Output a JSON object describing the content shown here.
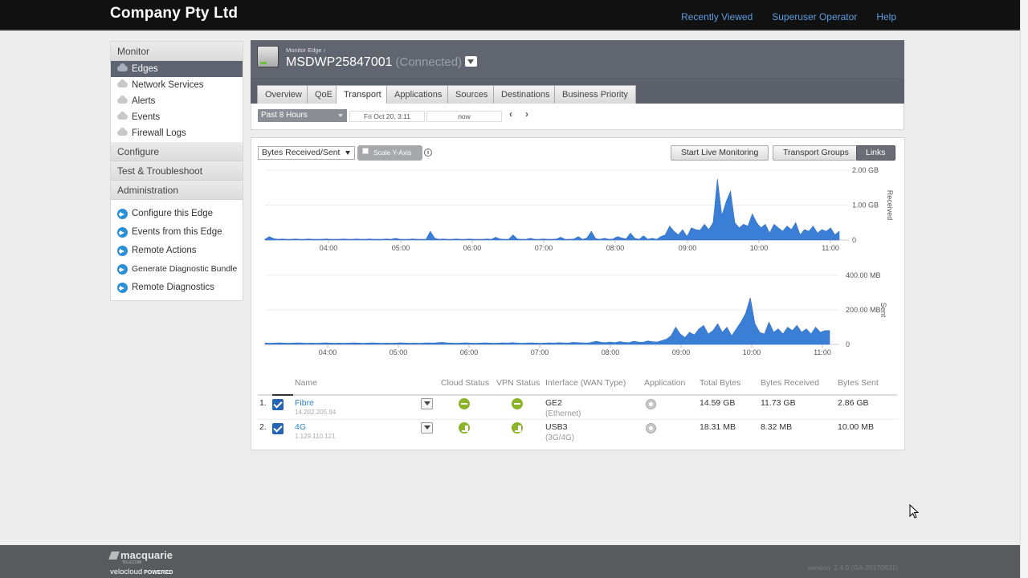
{
  "app": {
    "brand": "Company Pty Ltd",
    "toplinks": [
      "Recently Viewed",
      "Superuser Operator",
      "Help"
    ]
  },
  "sidebar": {
    "monitor": "Monitor",
    "items": [
      {
        "label": "Edges",
        "active": true
      },
      {
        "label": "Network Services"
      },
      {
        "label": "Alerts"
      },
      {
        "label": "Events"
      },
      {
        "label": "Firewall Logs"
      }
    ],
    "configure": "Configure",
    "test": "Test & Troubleshoot",
    "admin": "Administration",
    "actions": [
      "Configure this Edge",
      "Events from this Edge",
      "Remote Actions",
      "Generate Diagnostic Bundle",
      "Remote Diagnostics"
    ]
  },
  "edge": {
    "breadcrumb": "Monitor Edge",
    "name": "MSDWP25847001",
    "status": "(Connected)"
  },
  "tabs": [
    "Overview",
    "QoE",
    "Transport",
    "Applications",
    "Sources",
    "Destinations",
    "Business Priority"
  ],
  "active_tab": "Transport",
  "timebar": {
    "range": "Past 8 Hours",
    "from": "Fri Oct 20, 3:11",
    "to": "now"
  },
  "toolbar": {
    "metric": "Bytes Received/Sent",
    "scale": "Scale Y-Axis",
    "live": "Start Live Monitoring",
    "groups": "Transport Groups",
    "links": "Links"
  },
  "chart_data": [
    {
      "type": "area",
      "ylabel": "Received",
      "yticks": [
        "2.00 GB",
        "1.00 GB",
        "0"
      ],
      "ylim": [
        0,
        2.0
      ],
      "unit": "GB",
      "xticks": [
        "04:00",
        "05:00",
        "06:00",
        "07:00",
        "08:00",
        "09:00",
        "10:00",
        "11:00"
      ],
      "series": [
        {
          "color": "#3a7fd5",
          "values": [
            0.02,
            0.1,
            0.04,
            0.02,
            0.03,
            0.02,
            0.02,
            0.03,
            0.02,
            0.02,
            0.03,
            0.02,
            0.02,
            0.02,
            0.03,
            0.02,
            0.02,
            0.02,
            0.03,
            0.02,
            0.02,
            0.03,
            0.02,
            0.02,
            0.03,
            0.02,
            0.02,
            0.02,
            0.03,
            0.02,
            0.05,
            0.02,
            0.02,
            0.02,
            0.03,
            0.02,
            0.02,
            0.02,
            0.25,
            0.05,
            0.02,
            0.03,
            0.02,
            0.02,
            0.03,
            0.02,
            0.02,
            0.03,
            0.02,
            0.02,
            0.02,
            0.03,
            0.02,
            0.08,
            0.03,
            0.02,
            0.02,
            0.15,
            0.03,
            0.02,
            0.02,
            0.05,
            0.02,
            0.02,
            0.03,
            0.02,
            0.02,
            0.03,
            0.08,
            0.02,
            0.02,
            0.03,
            0.1,
            0.02,
            0.06,
            0.25,
            0.04,
            0.02,
            0.05,
            0.02,
            0.03,
            0.1,
            0.06,
            0.03,
            0.2,
            0.05,
            0.02,
            0.12,
            0.02,
            0.05,
            0.02,
            0.1,
            0.15,
            0.4,
            0.25,
            0.15,
            0.3,
            0.1,
            0.35,
            0.3,
            0.28,
            0.45,
            0.3,
            0.5,
            1.75,
            0.7,
            1.1,
            1.4,
            0.5,
            0.35,
            0.45,
            0.4,
            0.75,
            0.5,
            0.35,
            0.45,
            0.2,
            0.45,
            0.35,
            0.25,
            0.4,
            0.3,
            0.5,
            0.15,
            0.3,
            0.25,
            0.4,
            0.2,
            0.3,
            0.25,
            0.35,
            0.15,
            0.25
          ]
        }
      ]
    },
    {
      "type": "area",
      "ylabel": "Sent",
      "yticks": [
        "400.00 MB",
        "200.00 MB",
        "0"
      ],
      "ylim": [
        0,
        400
      ],
      "unit": "MB",
      "xticks": [
        "04:00",
        "05:00",
        "06:00",
        "07:00",
        "08:00",
        "09:00",
        "10:00",
        "11:00"
      ],
      "series": [
        {
          "color": "#3a7fd5",
          "values": [
            8,
            7,
            8,
            9,
            8,
            7,
            8,
            9,
            8,
            7,
            8,
            7,
            8,
            9,
            8,
            7,
            8,
            7,
            8,
            9,
            8,
            7,
            8,
            9,
            8,
            7,
            8,
            7,
            8,
            9,
            8,
            7,
            8,
            7,
            8,
            9,
            8,
            10,
            12,
            9,
            8,
            7,
            8,
            9,
            8,
            7,
            8,
            9,
            8,
            7,
            8,
            9,
            8,
            10,
            8,
            7,
            8,
            9,
            8,
            7,
            8,
            9,
            8,
            10,
            9,
            8,
            12,
            10,
            9,
            8,
            12,
            18,
            12,
            10,
            14,
            10,
            16,
            12,
            10,
            18,
            14,
            12,
            20,
            16,
            14,
            22,
            30,
            50,
            100,
            60,
            40,
            70,
            55,
            90,
            110,
            60,
            80,
            120,
            70,
            100,
            50,
            90,
            130,
            180,
            270,
            120,
            70,
            60,
            130,
            70,
            90,
            60,
            100,
            80,
            110,
            70,
            90,
            60,
            100,
            70,
            80,
            80
          ]
        }
      ]
    }
  ],
  "table": {
    "headers": [
      "Name",
      "Cloud Status",
      "VPN Status",
      "Interface (WAN Type)",
      "Application",
      "Total Bytes",
      "Bytes Received",
      "Bytes Sent"
    ],
    "rows": [
      {
        "num": "1.",
        "name": "Fibre",
        "ip": "14.202.205.94",
        "iface": "GE2",
        "type": "(Ethernet)",
        "total": "14.59 GB",
        "recv": "11.73 GB",
        "sent": "2.86 GB"
      },
      {
        "num": "2.",
        "name": "4G",
        "ip": "1.129.110.121",
        "iface": "USB3",
        "type": "(3G/4G)",
        "total": "18.31 MB",
        "recv": "8.32 MB",
        "sent": "10.00 MB"
      }
    ]
  },
  "footer": {
    "logo1": "macquarie",
    "logo1_sub": "TELECOM",
    "logo2": "velocloud",
    "logo2_b": "POWERED",
    "version": "version: 2.4.0 (GA-20170831)"
  }
}
